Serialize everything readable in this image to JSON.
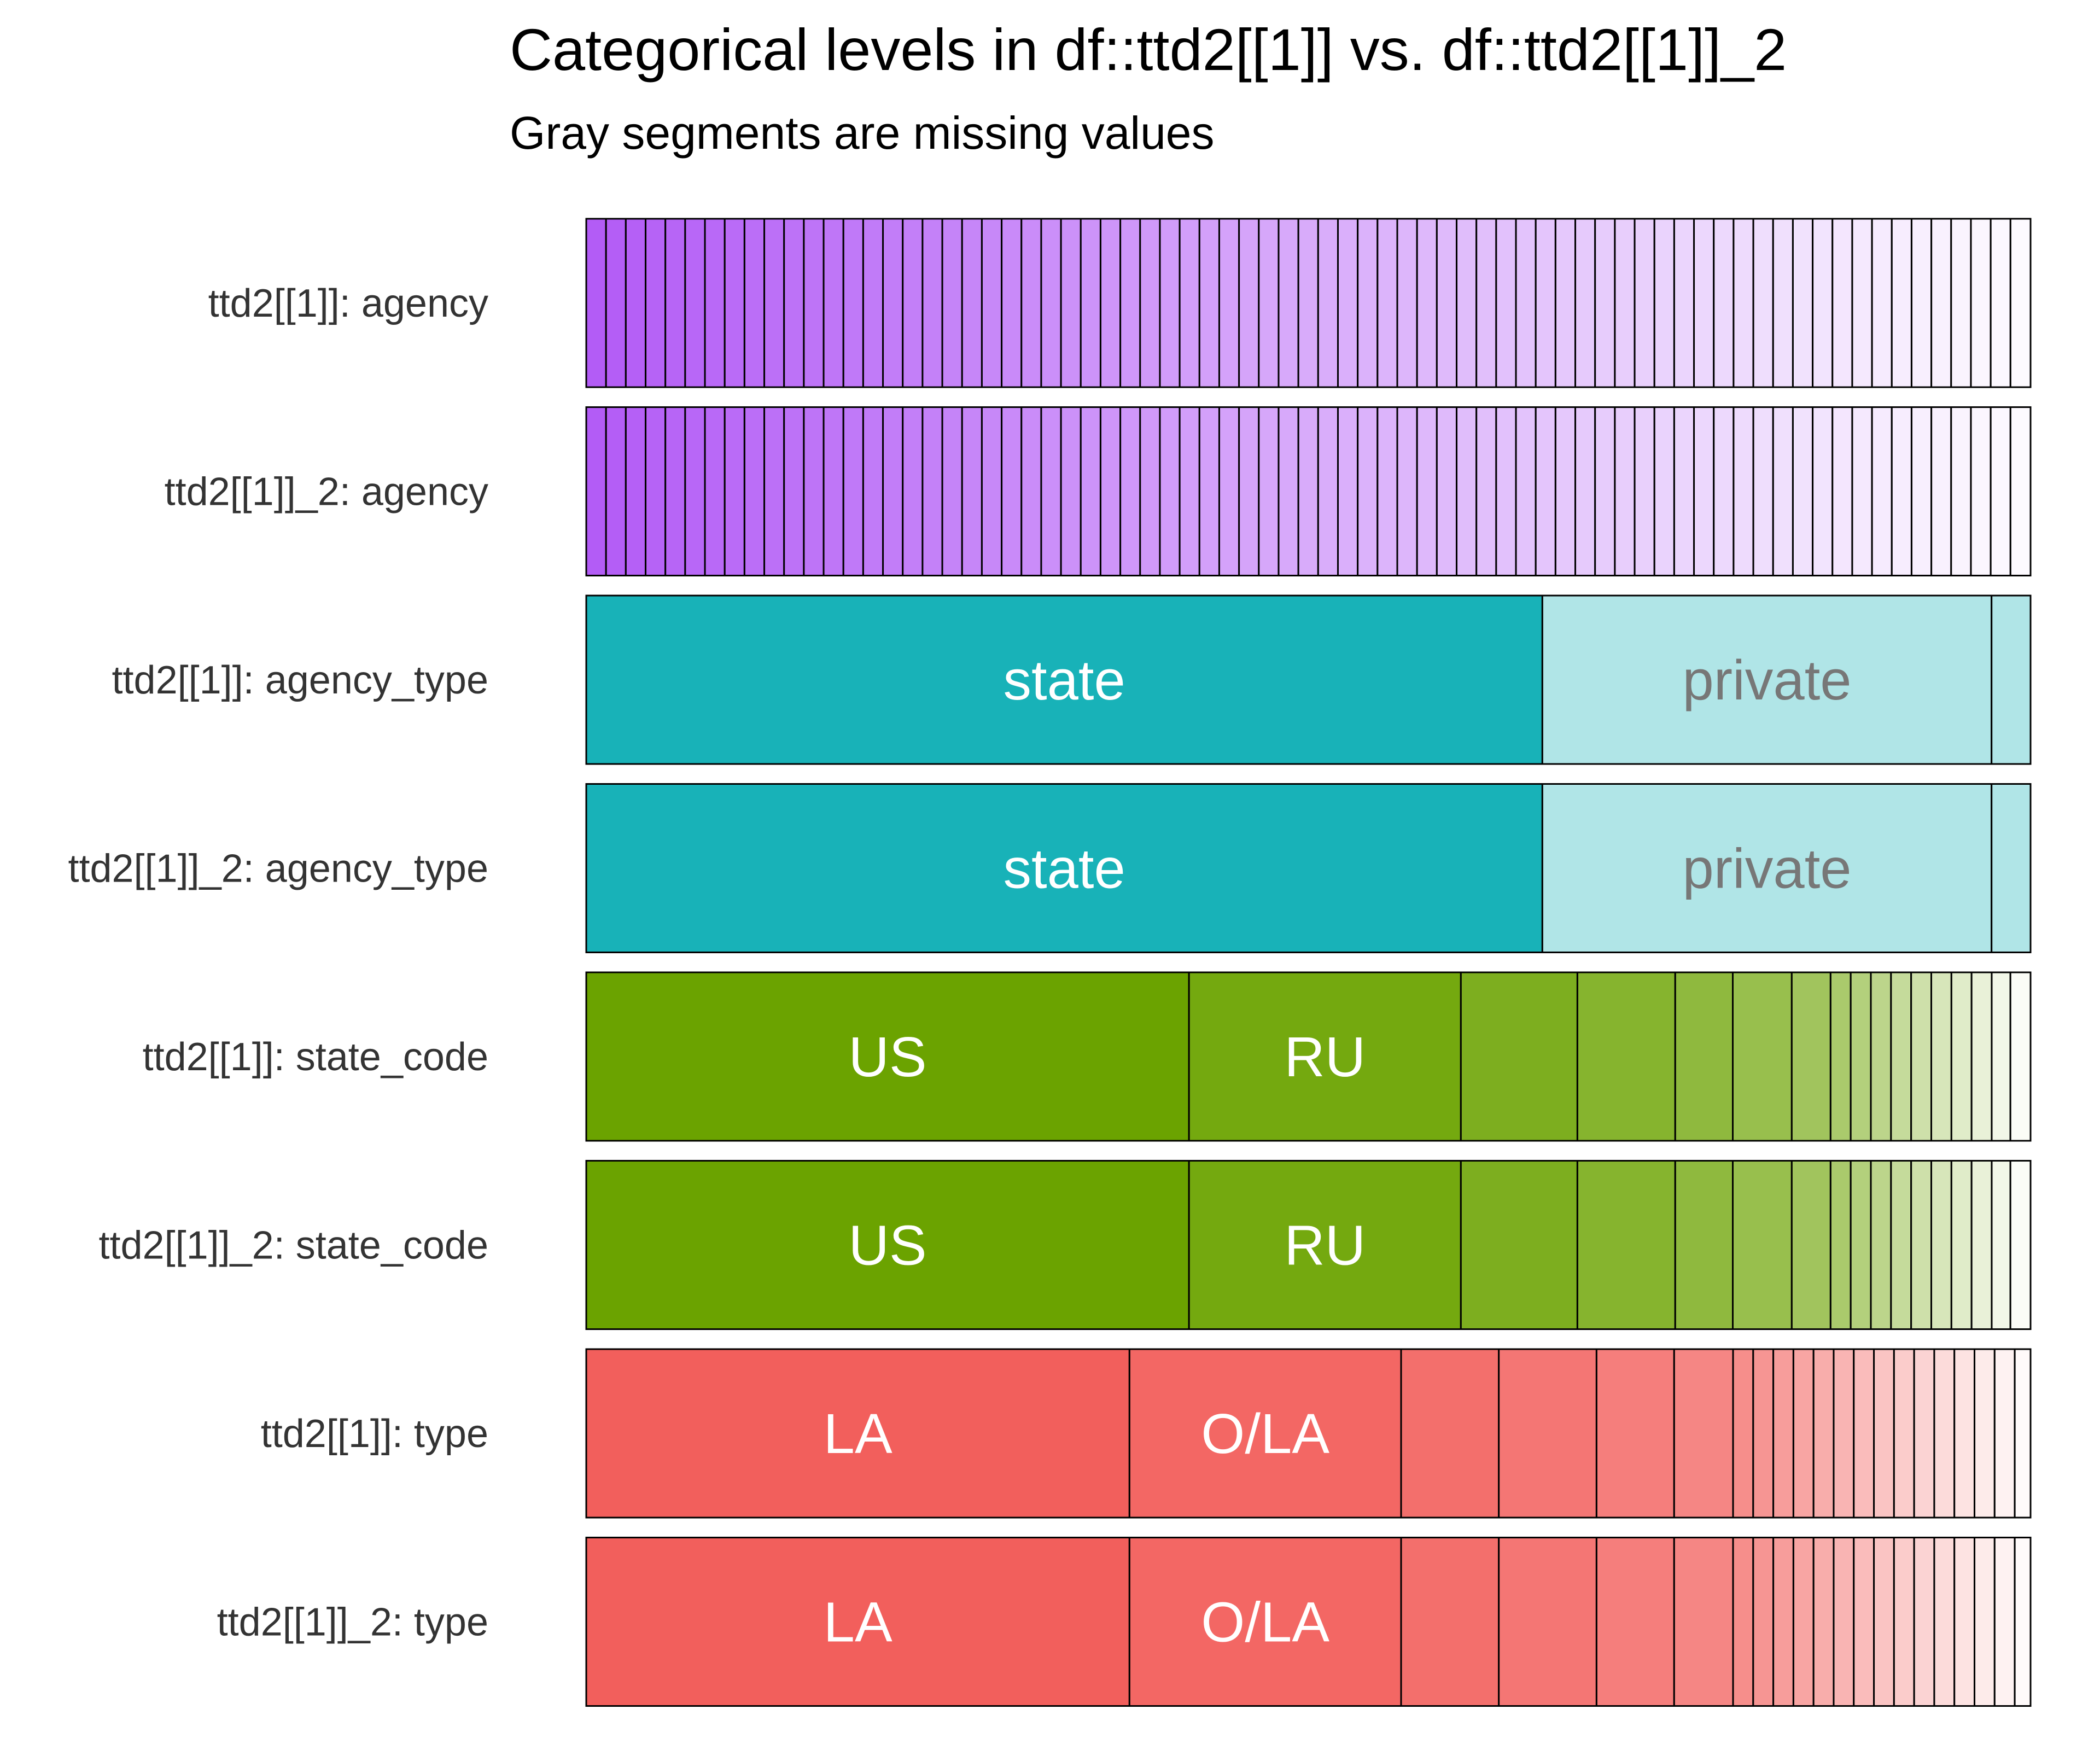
{
  "chart_data": {
    "type": "bar",
    "orientation": "horizontal-stacked-proportion",
    "title": "Categorical levels in df::ttd2[[1]] vs. df::ttd2[[1]]_2",
    "subtitle": "Gray segments are missing values",
    "groups": [
      {
        "name": "agency",
        "color": "#B35CF6",
        "fractions": [
          0.0137,
          0.0137,
          0.0137,
          0.0137,
          0.0137,
          0.0137,
          0.0137,
          0.0137,
          0.0137,
          0.0137,
          0.0137,
          0.0137,
          0.0137,
          0.0137,
          0.0137,
          0.0137,
          0.0137,
          0.0137,
          0.0137,
          0.0137,
          0.0137,
          0.0137,
          0.0137,
          0.0137,
          0.0137,
          0.0137,
          0.0137,
          0.0137,
          0.0137,
          0.0137,
          0.0137,
          0.0137,
          0.0137,
          0.0137,
          0.0137,
          0.0137,
          0.0137,
          0.0137,
          0.0137,
          0.0137,
          0.0137,
          0.0137,
          0.0137,
          0.0137,
          0.0137,
          0.0137,
          0.0137,
          0.0137,
          0.0137,
          0.0137,
          0.0137,
          0.0137,
          0.0137,
          0.0137,
          0.0137,
          0.0137,
          0.0137,
          0.0137,
          0.0137,
          0.0137,
          0.0137,
          0.0137,
          0.0137,
          0.0137,
          0.0137,
          0.0137,
          0.0137,
          0.0137,
          0.0137,
          0.0137,
          0.0137,
          0.0137,
          0.0139
        ],
        "labels": [],
        "rows": [
          {
            "label": "ttd2[[1]]: agency"
          },
          {
            "label": "ttd2[[1]]_2: agency"
          }
        ]
      },
      {
        "name": "agency_type",
        "color": "#18B2B8",
        "fractions": [
          0.662,
          0.311,
          0.027
        ],
        "labels": [
          "state",
          "private",
          ""
        ],
        "rows": [
          {
            "label": "ttd2[[1]]: agency_type"
          },
          {
            "label": "ttd2[[1]]_2: agency_type"
          }
        ]
      },
      {
        "name": "state_code",
        "color": "#6BA300",
        "fractions": [
          0.419,
          0.189,
          0.081,
          0.068,
          0.04,
          0.041,
          0.027,
          0.014,
          0.014,
          0.014,
          0.014,
          0.014,
          0.014,
          0.014,
          0.014,
          0.013,
          0.014
        ],
        "labels": [
          "US",
          "RU"
        ],
        "rows": [
          {
            "label": "ttd2[[1]]: state_code"
          },
          {
            "label": "ttd2[[1]]_2: state_code"
          }
        ]
      },
      {
        "name": "type",
        "color": "#F25F5C",
        "fractions": [
          0.378,
          0.189,
          0.068,
          0.068,
          0.054,
          0.041,
          0.014,
          0.014,
          0.014,
          0.014,
          0.014,
          0.014,
          0.014,
          0.014,
          0.014,
          0.014,
          0.014,
          0.014,
          0.014,
          0.014,
          0.011
        ],
        "labels": [
          "LA",
          "O/LA"
        ],
        "rows": [
          {
            "label": "ttd2[[1]]: type"
          },
          {
            "label": "ttd2[[1]]_2: type"
          }
        ]
      }
    ],
    "xlim": [
      0,
      1
    ],
    "grid": false,
    "legend": "none"
  }
}
